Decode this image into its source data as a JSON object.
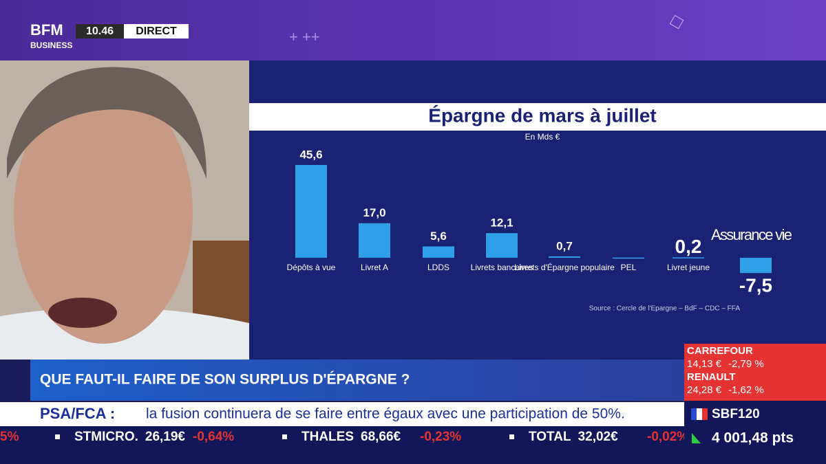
{
  "header": {
    "logo_top": "BFM",
    "logo_bottom": "BUSINESS",
    "time": "10.46",
    "live": "DIRECT"
  },
  "chart_data": {
    "type": "bar",
    "title": "Épargne de mars à juillet",
    "subtitle": "En Mds €",
    "categories": [
      "Dépôts à vue",
      "Livret A",
      "LDDS",
      "Livrets bancaires",
      "Livrets d'Épargne populaire",
      "PEL",
      "Livret jeune",
      "Assurance vie"
    ],
    "values": [
      45.6,
      17.0,
      5.6,
      12.1,
      0.7,
      0.1,
      0.2,
      -7.5
    ],
    "value_labels": [
      "45,6",
      "17,0",
      "5,6",
      "12,1",
      "0,7",
      null,
      "0,2",
      "-7,5"
    ],
    "color": "#2f9fe8",
    "source": "Source : Cercle de l'Epargne – BdF – CDC – FFA"
  },
  "banner": {
    "headline": "QUE FAUT-IL FAIRE DE SON SURPLUS D'ÉPARGNE ?"
  },
  "news": {
    "label": "PSA/FCA :",
    "text": "la fusion continuera de se faire entre égaux avec une participation de 50%."
  },
  "ticker": {
    "fragment": "5%",
    "items": [
      {
        "name": "STMICRO.",
        "price": "26,19€",
        "change": "-0,64%"
      },
      {
        "name": "THALES",
        "price": "68,66€",
        "change": "-0,23%"
      },
      {
        "name": "TOTAL",
        "price": "32,02€",
        "change": "-0,02%"
      }
    ]
  },
  "stocks": [
    {
      "name": "CARREFOUR",
      "price": "14,13 €",
      "change": "-2,79 %"
    },
    {
      "name": "RENAULT",
      "price": "24,28 €",
      "change": "-1,62 %"
    }
  ],
  "index": {
    "name": "SBF120",
    "value": "4 001,48 pts"
  }
}
